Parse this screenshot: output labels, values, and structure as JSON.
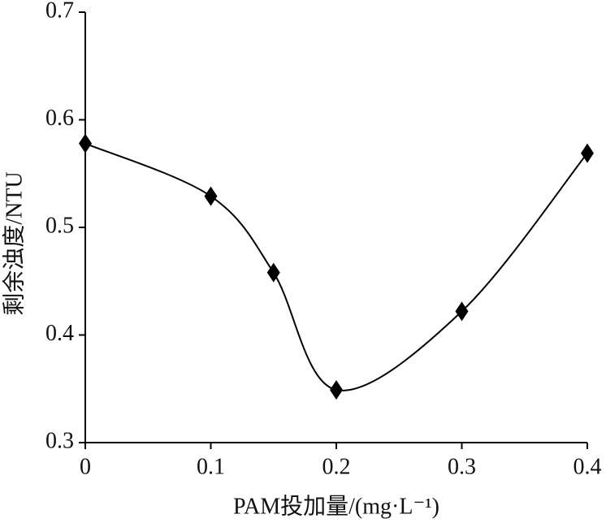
{
  "chart_data": {
    "type": "line",
    "x_label": "PAM投加量/(mg·L⁻¹)",
    "y_label": "剩余浊度/NTU",
    "x": [
      0,
      0.1,
      0.15,
      0.2,
      0.3,
      0.4
    ],
    "series": [
      {
        "color": "#000000",
        "values": [
          0.578,
          0.529,
          0.458,
          0.349,
          0.422,
          0.569
        ]
      }
    ],
    "xlim": [
      0,
      0.4
    ],
    "xticks": [
      0,
      0.1,
      0.2,
      0.3,
      0.4
    ],
    "ylim": [
      0.3,
      0.7
    ],
    "yticks": [
      0.3,
      0.4,
      0.5,
      0.6,
      0.7
    ],
    "smooth": true,
    "marker": "diamond"
  }
}
